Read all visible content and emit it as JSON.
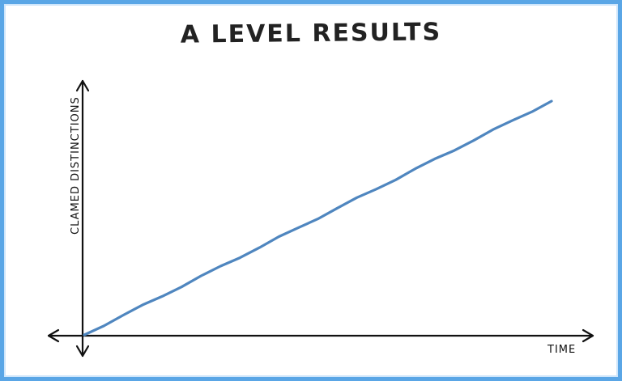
{
  "chart_data": {
    "type": "line",
    "title": "A LEVEL RESULTS",
    "xlabel": "TIME",
    "ylabel": "CLAMED DISTINCTIONS",
    "x": [
      0,
      1
    ],
    "series": [
      {
        "values": [
          0,
          1
        ]
      }
    ],
    "grid": false,
    "legend": "none",
    "colors": {
      "line": "#4f86bf",
      "axes": "#111111",
      "frame": "#5aa6e6"
    }
  }
}
